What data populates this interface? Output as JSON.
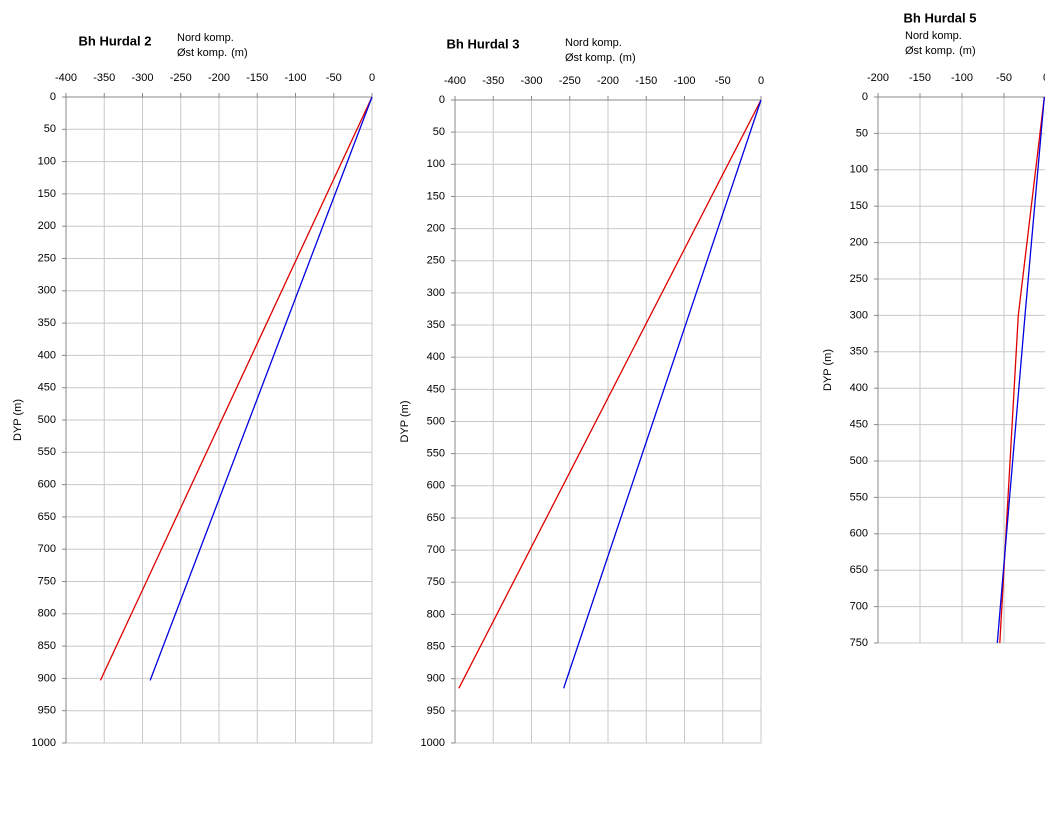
{
  "chart_data": [
    {
      "type": "line",
      "title": "Bh Hurdal 2",
      "x_label": "(m)",
      "y_label": "DYP (m)",
      "xlim": [
        -400,
        0
      ],
      "xticks": [
        -400,
        -350,
        -300,
        -250,
        -200,
        -150,
        -100,
        -50,
        0
      ],
      "ylim": [
        0,
        1000
      ],
      "yticks": [
        0,
        50,
        100,
        150,
        200,
        250,
        300,
        350,
        400,
        450,
        500,
        550,
        600,
        650,
        700,
        750,
        800,
        850,
        900,
        950,
        1000
      ],
      "y_inverted": true,
      "grid": true,
      "series": [
        {
          "name": "Nord komp.",
          "color": "#e00000",
          "x": [
            0,
            -355
          ],
          "values": [
            0,
            903
          ]
        },
        {
          "name": "Øst komp.",
          "color": "#0000e0",
          "x": [
            0,
            -290
          ],
          "values": [
            0,
            903
          ]
        }
      ]
    },
    {
      "type": "line",
      "title": "Bh Hurdal 3",
      "x_label": "(m)",
      "y_label": "DYP (m)",
      "xlim": [
        -400,
        0
      ],
      "xticks": [
        -400,
        -350,
        -300,
        -250,
        -200,
        -150,
        -100,
        -50,
        0
      ],
      "ylim": [
        0,
        1000
      ],
      "yticks": [
        0,
        50,
        100,
        150,
        200,
        250,
        300,
        350,
        400,
        450,
        500,
        550,
        600,
        650,
        700,
        750,
        800,
        850,
        900,
        950,
        1000
      ],
      "y_inverted": true,
      "grid": true,
      "series": [
        {
          "name": "Nord komp.",
          "color": "#e00000",
          "x": [
            0,
            -395
          ],
          "values": [
            0,
            915
          ]
        },
        {
          "name": "Øst komp.",
          "color": "#0000e0",
          "x": [
            0,
            -258
          ],
          "values": [
            0,
            915
          ]
        }
      ]
    },
    {
      "type": "line",
      "title": "Bh Hurdal 5",
      "x_label": "(m)",
      "y_label": "DYP (m)",
      "xlim": [
        -200,
        0
      ],
      "xticks": [
        -200,
        -150,
        -100,
        -50,
        0
      ],
      "ylim": [
        0,
        750
      ],
      "yticks": [
        0,
        50,
        100,
        150,
        200,
        250,
        300,
        350,
        400,
        450,
        500,
        550,
        600,
        650,
        700,
        750
      ],
      "y_inverted": true,
      "grid": true,
      "series": [
        {
          "name": "Nord komp.",
          "color": "#e00000",
          "x": [
            -2,
            -33,
            -55
          ],
          "values": [
            0,
            300,
            750
          ]
        },
        {
          "name": "Øst komp.",
          "color": "#0000e0",
          "x": [
            -2,
            -25,
            -58
          ],
          "values": [
            0,
            300,
            750
          ]
        }
      ]
    }
  ]
}
